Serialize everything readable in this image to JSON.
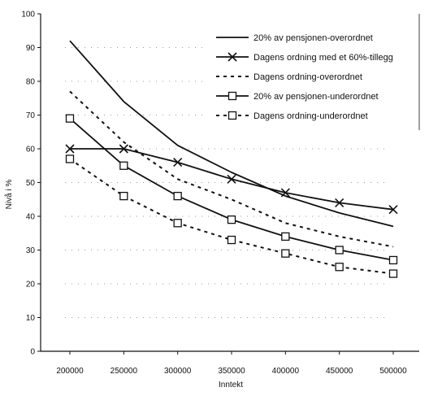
{
  "chart_data": {
    "type": "line",
    "title": "",
    "xlabel": "Inntekt",
    "ylabel": "Nivå i %",
    "x": [
      "200000",
      "250000",
      "300000",
      "350000",
      "400000",
      "450000",
      "500000"
    ],
    "ylim": [
      0,
      100
    ],
    "yticks": [
      "0",
      "10",
      "20",
      "30",
      "40",
      "50",
      "60",
      "70",
      "80",
      "90",
      "100"
    ],
    "grid": "dotted horizontal",
    "legend_position": "top-right",
    "series": [
      {
        "name": "20% av pensjonen-overordnet",
        "values": [
          92,
          74,
          61,
          53,
          46,
          41,
          37
        ],
        "line": "solid",
        "marker": "none",
        "color": "#111111"
      },
      {
        "name": "Dagens ordning med et 60%-tillegg",
        "values": [
          60,
          60,
          56,
          51,
          47,
          44,
          42
        ],
        "line": "solid",
        "marker": "x",
        "color": "#111111"
      },
      {
        "name": "Dagens ordning-overordnet",
        "values": [
          77,
          62,
          51,
          45,
          38,
          34,
          31
        ],
        "line": "dashed",
        "marker": "none",
        "color": "#111111"
      },
      {
        "name": "20% av pensjonen-underordnet",
        "values": [
          69,
          55,
          46,
          39,
          34,
          30,
          27
        ],
        "line": "solid",
        "marker": "square",
        "color": "#111111"
      },
      {
        "name": "Dagens ordning-underordnet",
        "values": [
          57,
          46,
          38,
          33,
          29,
          25,
          23
        ],
        "line": "dashed",
        "marker": "square",
        "color": "#111111"
      }
    ]
  }
}
